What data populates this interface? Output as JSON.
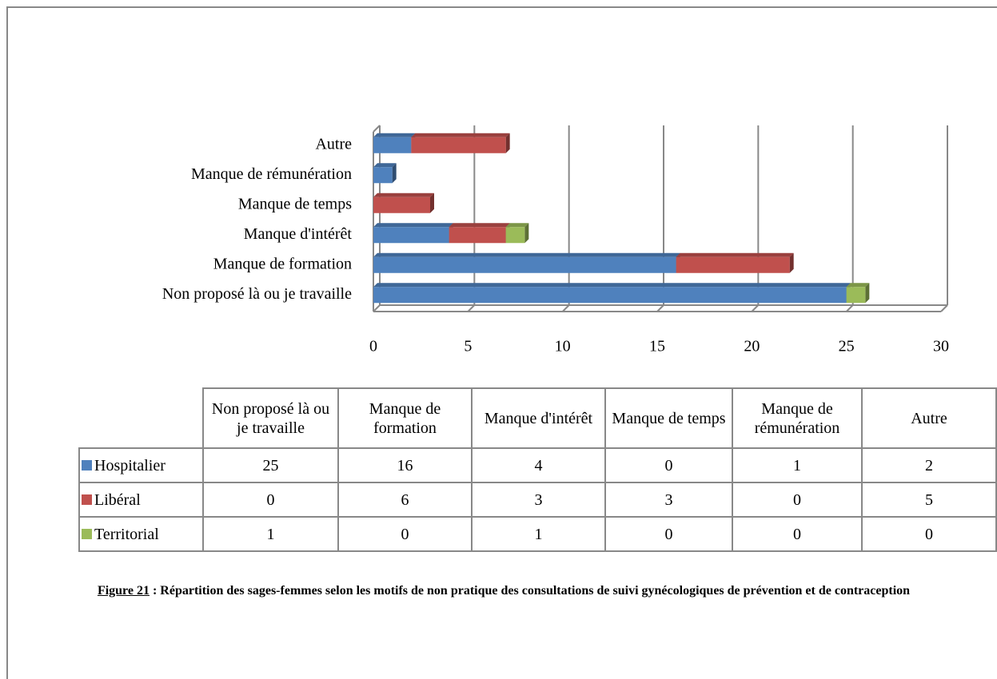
{
  "chart_data": {
    "type": "bar",
    "orientation": "horizontal",
    "stacked": true,
    "categories": [
      "Non proposé là ou je travaille",
      "Manque de formation",
      "Manque d'intérêt",
      "Manque de temps",
      "Manque de rémunération",
      "Autre"
    ],
    "series": [
      {
        "name": "Hospitalier",
        "color": "#4f81bd",
        "values": [
          25,
          16,
          4,
          0,
          1,
          2
        ]
      },
      {
        "name": "Libéral",
        "color": "#c0504d",
        "values": [
          0,
          6,
          3,
          3,
          0,
          5
        ]
      },
      {
        "name": "Territorial",
        "color": "#9bbb59",
        "values": [
          1,
          0,
          1,
          0,
          0,
          0
        ]
      }
    ],
    "xlim": [
      0,
      30
    ],
    "xticks": [
      0,
      5,
      10,
      15,
      20,
      25,
      30
    ],
    "grid": true,
    "caption_label": "Figure 21",
    "caption": ": Répartition des sages-femmes selon les motifs de non pratique des consultations de suivi gynécologiques de prévention et de contraception"
  }
}
